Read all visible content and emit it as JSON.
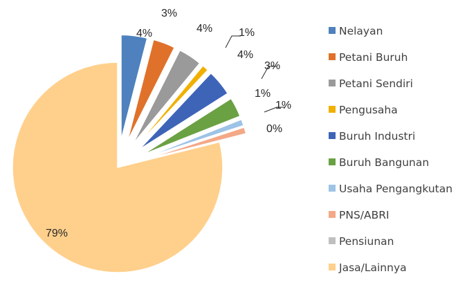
{
  "chart_data": {
    "type": "pie",
    "exploded": true,
    "legend_position": "right",
    "categories": [
      "Nelayan",
      "Petani Buruh",
      "Petani Sendiri",
      "Pengusaha",
      "Buruh Industri",
      "Buruh Bangunan",
      "Usaha Pengangkutan",
      "PNS/ABRI",
      "Pensiunan",
      "Jasa/Lainnya"
    ],
    "values": [
      4.0,
      3.4,
      3.6,
      1.0,
      4.0,
      3.0,
      1.0,
      1.0,
      0.1,
      78.9
    ],
    "data_labels": [
      "4%",
      "3%",
      "4%",
      "1%",
      "4%",
      "3%",
      "1%",
      "1%",
      "0%",
      "79%"
    ],
    "colors": [
      "#4E81BD",
      "#E0712A",
      "#9A9A9A",
      "#F0B000",
      "#3E64B8",
      "#6AA143",
      "#9DC3E6",
      "#F4A886",
      "#BFBFBF",
      "#FFD08C"
    ]
  }
}
